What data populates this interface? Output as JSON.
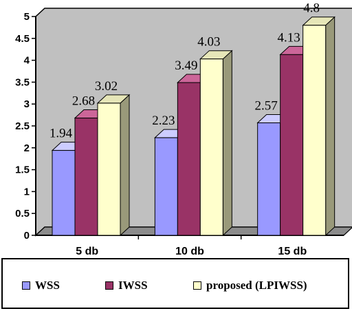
{
  "chart_data": {
    "type": "bar",
    "categories": [
      "5 db",
      "10 db",
      "15 db"
    ],
    "series": [
      {
        "name": "WSS",
        "values": [
          1.94,
          2.23,
          2.57
        ],
        "color": "#9999ff",
        "side_color": "#5c5c99",
        "top_color": "#ccccff"
      },
      {
        "name": "IWSS",
        "values": [
          2.68,
          3.49,
          4.13
        ],
        "color": "#993366",
        "side_color": "#5c1f3d",
        "top_color": "#cc6699"
      },
      {
        "name": "proposed (LPIWSS)",
        "values": [
          3.02,
          4.03,
          4.8
        ],
        "color": "#ffffcc",
        "side_color": "#99997a",
        "top_color": "#e6e6b8"
      }
    ],
    "data_labels": [
      [
        "1.94",
        "2.23",
        "2.57"
      ],
      [
        "2.68",
        "3.49",
        "4.13"
      ],
      [
        "3.02",
        "4.03",
        "4.8"
      ]
    ],
    "y_ticks": [
      "0",
      "0.5",
      "1",
      "1.5",
      "2",
      "2.5",
      "3",
      "3.5",
      "4",
      "4.5",
      "5"
    ],
    "ylim": [
      0,
      5
    ],
    "grid": false,
    "wall_color": "#c0c0c0",
    "legend_position": "bottom",
    "title": "",
    "xlabel": "",
    "ylabel": ""
  }
}
